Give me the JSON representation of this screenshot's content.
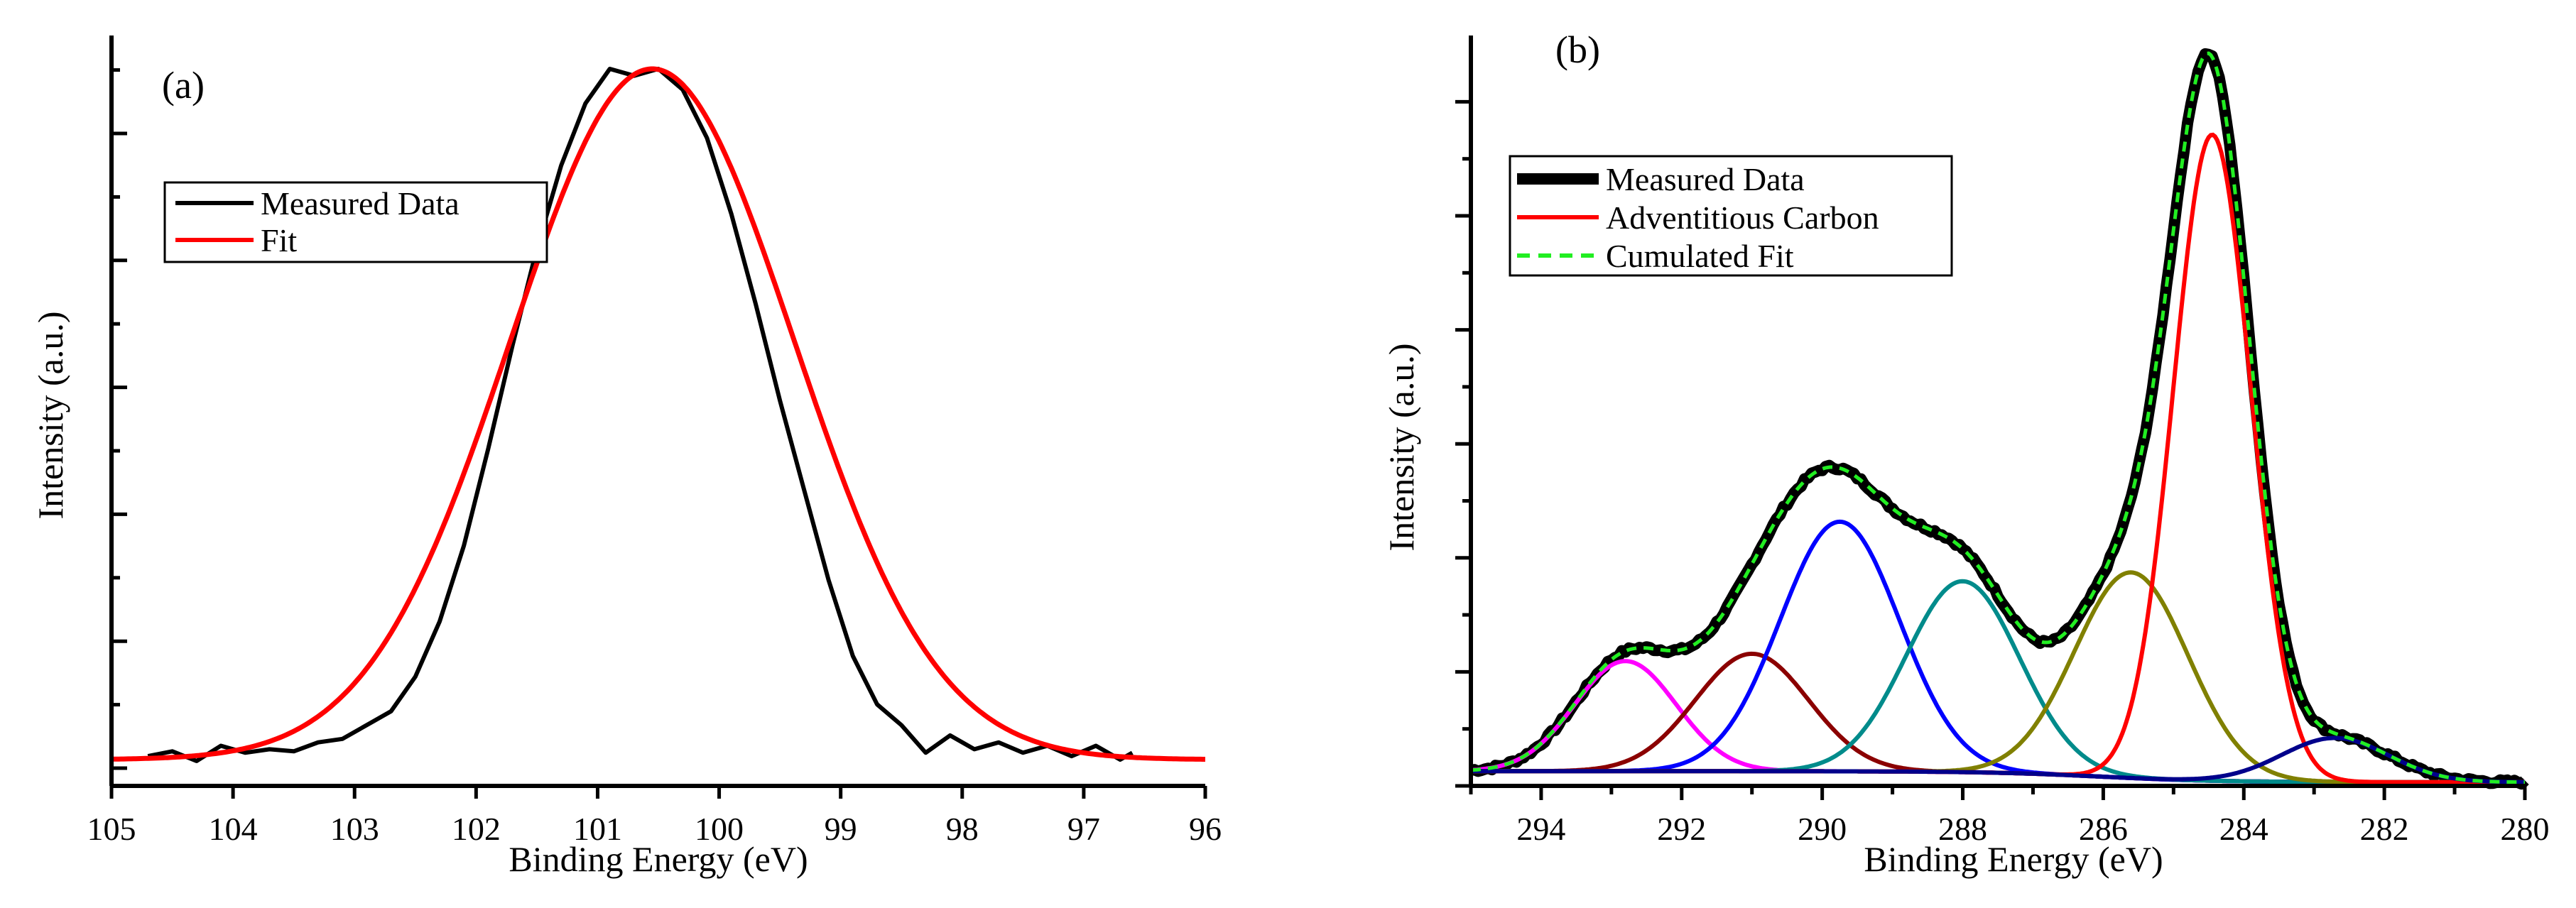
{
  "chart_data": [
    {
      "type": "line",
      "panel_label": "(a)",
      "xlabel": "Binding Energy (eV)",
      "ylabel": "Intensity (a.u.)",
      "xlim": [
        105,
        96
      ],
      "xticks": [
        "105",
        "104",
        "103",
        "102",
        "101",
        "100",
        "99",
        "98",
        "97",
        "96"
      ],
      "y_units": "normalized (0 = baseline, 1 = peak maximum)",
      "series": [
        {
          "name": "Measured Data",
          "color": "#000000",
          "x": [
            104.7,
            104.5,
            104.3,
            104.1,
            103.9,
            103.7,
            103.5,
            103.3,
            103.1,
            102.9,
            102.7,
            102.5,
            102.3,
            102.1,
            101.9,
            101.7,
            101.5,
            101.3,
            101.1,
            100.9,
            100.7,
            100.5,
            100.3,
            100.1,
            99.9,
            99.7,
            99.5,
            99.3,
            99.1,
            98.9,
            98.7,
            98.5,
            98.3,
            98.1,
            97.9,
            97.7,
            97.5,
            97.3,
            97.1,
            96.9,
            96.7,
            96.6
          ],
          "y": [
            0.005,
            0.012,
            -0.002,
            0.02,
            0.01,
            0.015,
            0.012,
            0.025,
            0.03,
            0.05,
            0.07,
            0.12,
            0.2,
            0.31,
            0.45,
            0.6,
            0.74,
            0.86,
            0.95,
            1.0,
            0.99,
            1.0,
            0.97,
            0.9,
            0.79,
            0.66,
            0.52,
            0.39,
            0.26,
            0.15,
            0.08,
            0.05,
            0.01,
            0.035,
            0.015,
            0.025,
            0.01,
            0.02,
            0.005,
            0.02,
            0.0,
            0.01
          ]
        },
        {
          "name": "Fit",
          "color": "#ff0000",
          "model": "gaussian",
          "center": 100.55,
          "fwhm": 2.75,
          "amplitude": 1.0,
          "x_range": [
            105,
            96
          ]
        }
      ],
      "legend": {
        "position": "upper-left",
        "entries": [
          "Measured Data",
          "Fit"
        ]
      }
    },
    {
      "type": "line",
      "panel_label": "(b)",
      "xlabel": "Binding Energy (eV)",
      "ylabel": "Intensity (a.u.)",
      "xlim": [
        295,
        280
      ],
      "xticks": [
        "294",
        "292",
        "290",
        "288",
        "286",
        "284",
        "282",
        "280"
      ],
      "y_units": "normalized (0 = baseline, 1 = envelope maximum)",
      "components": [
        {
          "color": "#ff00ff",
          "center": 292.8,
          "fwhm": 1.7,
          "amplitude": 0.15
        },
        {
          "color": "#8b0000",
          "center": 291.0,
          "fwhm": 1.9,
          "amplitude": 0.16
        },
        {
          "color": "#0000ff",
          "center": 289.75,
          "fwhm": 2.0,
          "amplitude": 0.34
        },
        {
          "color": "#008b8b",
          "center": 288.0,
          "fwhm": 1.9,
          "amplitude": 0.26
        },
        {
          "color": "#808000",
          "center": 285.6,
          "fwhm": 1.9,
          "amplitude": 0.28
        },
        {
          "color": "#ff0000",
          "center": 284.45,
          "fwhm": 1.3,
          "amplitude": 0.88
        },
        {
          "color": "#00008b",
          "center": 282.7,
          "fwhm": 1.8,
          "amplitude": 0.06
        }
      ],
      "series": [
        {
          "name": "Measured Data",
          "color": "#000000"
        },
        {
          "name": "Adventitious Carbon",
          "color": "#ff0000"
        },
        {
          "name": "Cumulated Fit",
          "color": "#22ee22",
          "style": "dashed"
        }
      ],
      "legend": {
        "position": "upper-left",
        "entries": [
          "Measured Data",
          "Adventitious Carbon",
          "Cumulated Fit"
        ]
      }
    }
  ]
}
